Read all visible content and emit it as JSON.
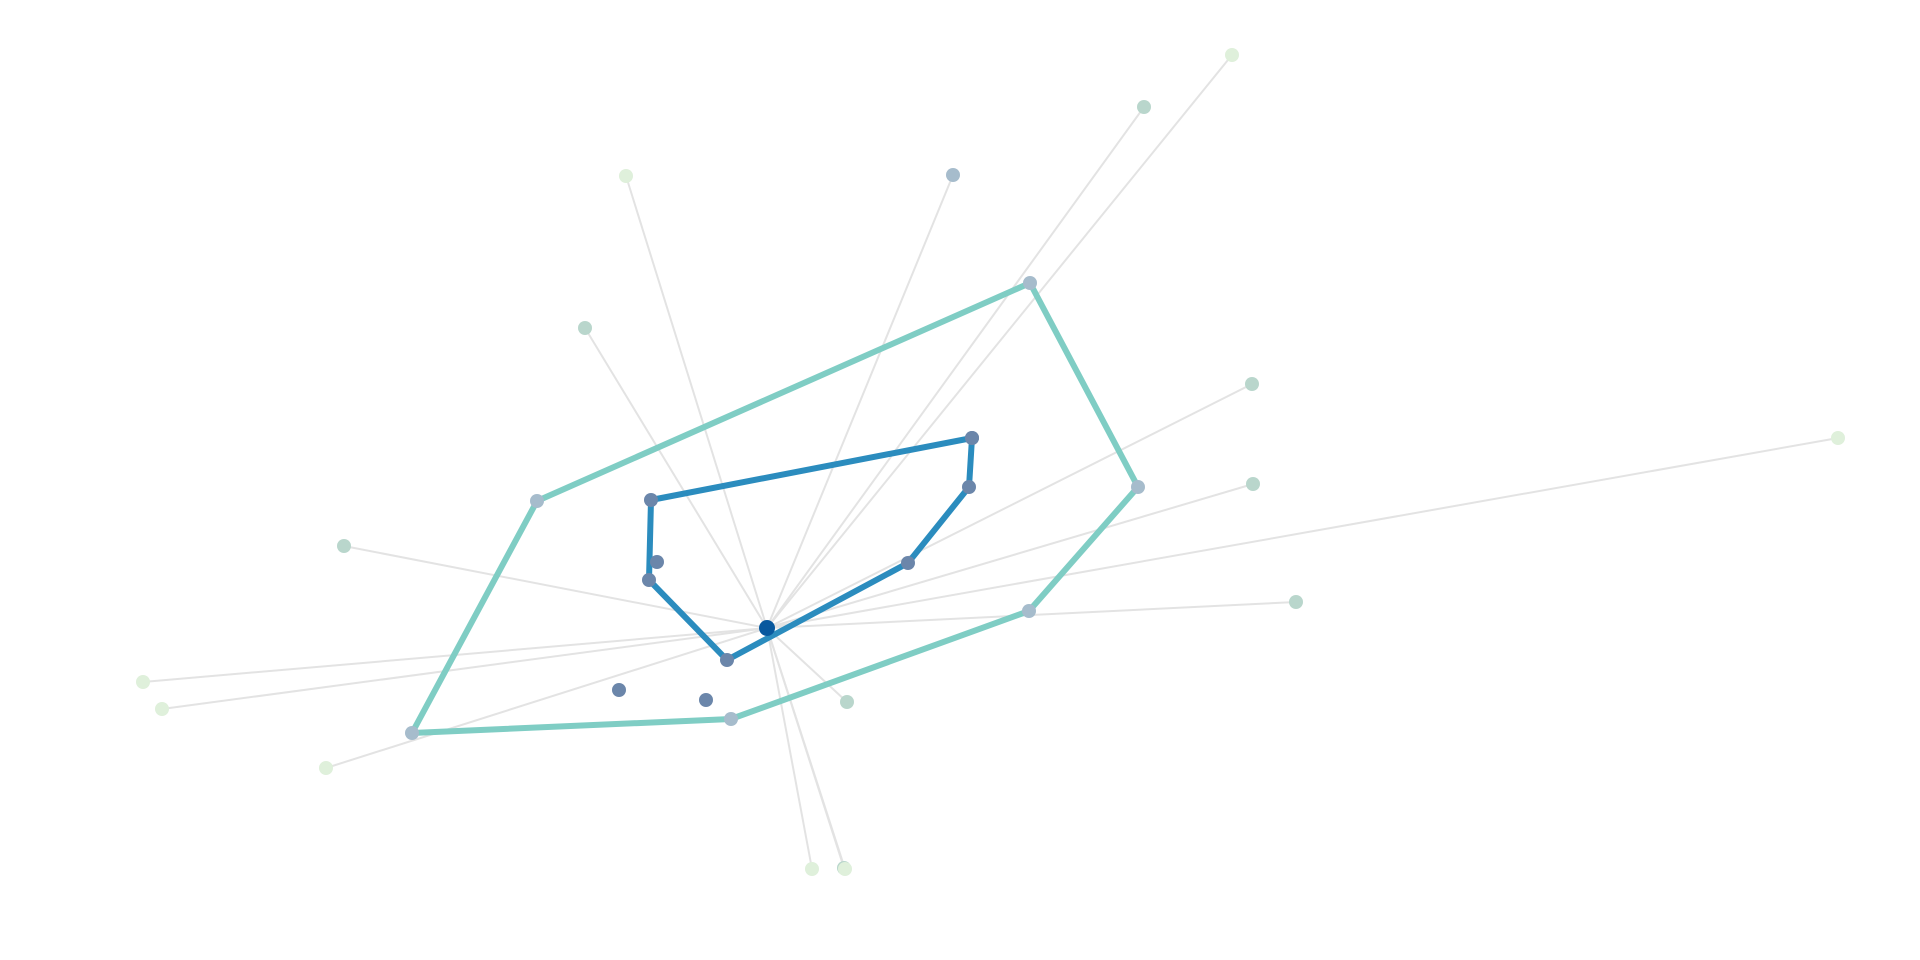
{
  "diagram": {
    "type": "radial-network-with-hulls",
    "center": {
      "id": "c",
      "color": "#08589e"
    },
    "colors": {
      "spoke": "#e3e3e3",
      "inner_hull": "#2b8cbe",
      "outer_hull": "#7fcdc4",
      "node_inner": "#6b86aa",
      "node_mid": "#a6bccc",
      "node_outer": "#b9d6cc",
      "node_far": "#dff0db"
    },
    "nodes": [
      {
        "id": "c",
        "group": "center"
      },
      {
        "id": "i1",
        "group": "inner"
      },
      {
        "id": "i2",
        "group": "inner"
      },
      {
        "id": "i3",
        "group": "inner"
      },
      {
        "id": "i4",
        "group": "inner"
      },
      {
        "id": "i5",
        "group": "inner"
      },
      {
        "id": "i6",
        "group": "inner"
      },
      {
        "id": "i7",
        "group": "inner"
      },
      {
        "id": "i8",
        "group": "inner"
      },
      {
        "id": "i9",
        "group": "inner"
      },
      {
        "id": "i10",
        "group": "inner"
      },
      {
        "id": "m1",
        "group": "mid"
      },
      {
        "id": "m2",
        "group": "mid"
      },
      {
        "id": "m3",
        "group": "mid"
      },
      {
        "id": "m4",
        "group": "mid"
      },
      {
        "id": "m5",
        "group": "mid"
      },
      {
        "id": "m6",
        "group": "mid"
      },
      {
        "id": "m7",
        "group": "mid"
      },
      {
        "id": "o1",
        "group": "outer"
      },
      {
        "id": "o2",
        "group": "outer"
      },
      {
        "id": "o3",
        "group": "outer"
      },
      {
        "id": "o4",
        "group": "outer"
      },
      {
        "id": "o5",
        "group": "outer"
      },
      {
        "id": "o6",
        "group": "outer"
      },
      {
        "id": "o7",
        "group": "outer"
      },
      {
        "id": "o8",
        "group": "outer"
      },
      {
        "id": "f1",
        "group": "far"
      },
      {
        "id": "f2",
        "group": "far"
      },
      {
        "id": "f3",
        "group": "far"
      },
      {
        "id": "f4",
        "group": "far"
      },
      {
        "id": "f5",
        "group": "far"
      },
      {
        "id": "f6",
        "group": "far"
      },
      {
        "id": "f7",
        "group": "far"
      },
      {
        "id": "f8",
        "group": "far"
      }
    ],
    "spokes": [
      "o3",
      "o2",
      "f2",
      "f3",
      "o1",
      "o5",
      "o6",
      "f4",
      "o7",
      "f5",
      "f6",
      "f7",
      "f8",
      "o4",
      "f1",
      "o8",
      "m7"
    ],
    "inner_hull": [
      "i1",
      "i6",
      "i7",
      "i8",
      "i9",
      "i10",
      "i5"
    ],
    "outer_hull": [
      "m1",
      "m2",
      "m3",
      "m4",
      "m5",
      "m6"
    ]
  }
}
